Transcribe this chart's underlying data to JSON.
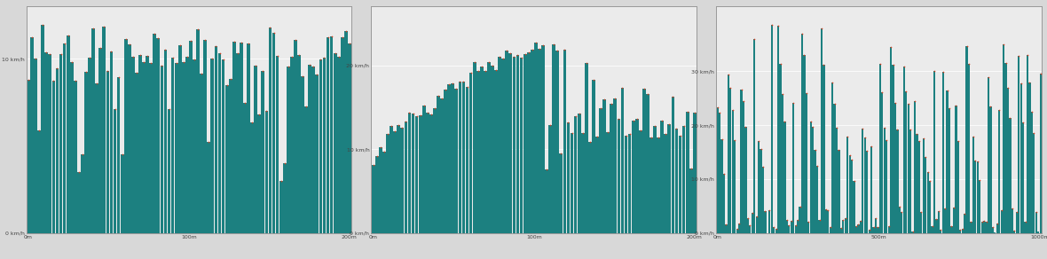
{
  "bar_color": "#1c8080",
  "dot_color": "#d04020",
  "bg_color": "#d8d8d8",
  "plot_bg": "#ebebeb",
  "border_color": "#aaaaaa",
  "chart1": {
    "ylim": [
      0,
      13
    ],
    "yticks": [
      0,
      10
    ],
    "ytick_labels": [
      "0 km/h",
      "10 km/h"
    ],
    "xticks_dist": [
      0,
      100,
      200
    ],
    "xtick_labels": [
      "0m",
      "100m",
      "200m"
    ],
    "total_dist": 200,
    "n_bars": 90
  },
  "chart2": {
    "ylim": [
      0,
      27
    ],
    "yticks": [
      0,
      10,
      20
    ],
    "ytick_labels": [
      "0 km/h",
      "10 km/h",
      "20 km/h"
    ],
    "xticks_dist": [
      0,
      100,
      200
    ],
    "xtick_labels": [
      "0m",
      "100m",
      "200m"
    ],
    "total_dist": 200,
    "n_bars": 90
  },
  "chart3": {
    "ylim": [
      0,
      42
    ],
    "yticks": [
      0,
      10,
      20,
      30
    ],
    "ytick_labels": [
      "0 km/h",
      "10 km/h",
      "20 km/h",
      "30 km/h"
    ],
    "xticks_dist": [
      0,
      500,
      1000
    ],
    "xtick_labels": [
      "0m",
      "500m",
      "1000m"
    ],
    "total_dist": 1000,
    "n_bars": 150
  },
  "figsize": [
    11.8,
    2.92
  ],
  "dpi": 100
}
